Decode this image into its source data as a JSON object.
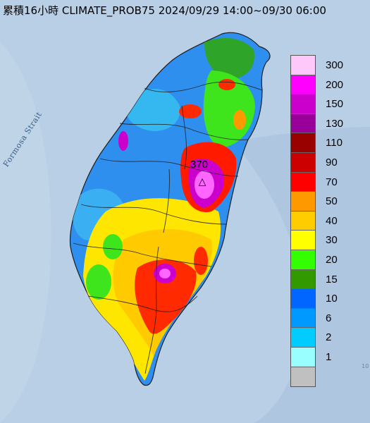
{
  "title": "累積16小時 CLIMATE_PROB75 2024/09/29 14:00~09/30 06:00",
  "water_label": "Formosa Strait",
  "peak_value": "370",
  "peak_marker": "△",
  "corner_text": "10",
  "legend": {
    "levels": [
      {
        "label": "300",
        "color": "#ffc8fa"
      },
      {
        "label": "200",
        "color": "#ff00ff"
      },
      {
        "label": "150",
        "color": "#cc00cc"
      },
      {
        "label": "130",
        "color": "#990099"
      },
      {
        "label": "110",
        "color": "#990000"
      },
      {
        "label": "90",
        "color": "#cc0000"
      },
      {
        "label": "70",
        "color": "#ff0000"
      },
      {
        "label": "50",
        "color": "#ff9900"
      },
      {
        "label": "40",
        "color": "#ffcc00"
      },
      {
        "label": "30",
        "color": "#ffff00"
      },
      {
        "label": "20",
        "color": "#33ff00"
      },
      {
        "label": "15",
        "color": "#339900"
      },
      {
        "label": "10",
        "color": "#0066ff"
      },
      {
        "label": "6",
        "color": "#0099ff"
      },
      {
        "label": "2",
        "color": "#00ccff"
      },
      {
        "label": "1",
        "color": "#99ffff"
      },
      {
        "label": "",
        "color": "#c0c0c0"
      }
    ]
  }
}
